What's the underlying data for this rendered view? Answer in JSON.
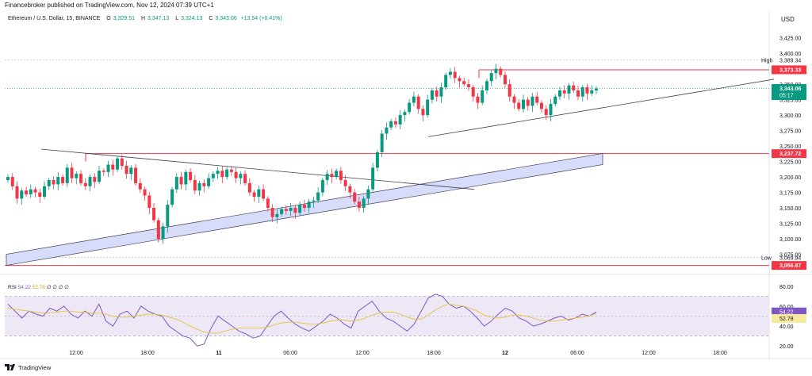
{
  "header": {
    "published": "Financebroker published on TradingView.com, Nov 12, 2024 07:39 UTC+1",
    "symbol": "Ethereum / U.S. Dollar, 15, BINANCE",
    "ohlc": {
      "o_label": "O",
      "o": "3,329.51",
      "h_label": "H",
      "h": "3,347.13",
      "l_label": "L",
      "l": "3,324.13",
      "c_label": "C",
      "c": "3,343.06",
      "change": "+13.54 (+0.41%)"
    },
    "currency": "USD"
  },
  "rsi_legend": {
    "label": "RSI",
    "value1": "54.22",
    "value2": "52.78",
    "extras": "∅ ∅ ∅ ∅"
  },
  "footer": {
    "logo_text": "TradingView"
  },
  "colors": {
    "up": "#089981",
    "down": "#f23645",
    "channel_fill": "#d8dcfb",
    "rsi": "#7e57c2",
    "rsi_ma": "#e5c33b",
    "level_line": "#f23645"
  },
  "chart_data": [
    {
      "type": "candlestick",
      "title": "Ethereum / U.S. Dollar, 15, BINANCE",
      "ylim": [
        3050,
        3440
      ],
      "y_ticks": [
        "3,425.00",
        "3,400.00",
        "3,375.00",
        "3,350.00",
        "3,325.00",
        "3,300.00",
        "3,275.00",
        "3,250.00",
        "3,225.00",
        "3,200.00",
        "3,175.00",
        "3,150.00",
        "3,125.00",
        "3,100.00",
        "3,075.00"
      ],
      "x_ticks": [
        "12:00",
        "18:00",
        "11",
        "06:00",
        "12:00",
        "18:00",
        "12",
        "06:00",
        "12:00",
        "18:00"
      ],
      "price_labels": [
        {
          "text": "3,389.34",
          "value": 3389.34,
          "tag": "High",
          "kind": "plain"
        },
        {
          "text": "3,373.33",
          "value": 3373.33,
          "kind": "red"
        },
        {
          "text": "3,343.06",
          "value": 3343.06,
          "sub": "05:17",
          "kind": "green"
        },
        {
          "text": "3,237.72",
          "value": 3237.72,
          "kind": "red"
        },
        {
          "text": "3,069.94",
          "value": 3069.94,
          "tag": "Low",
          "kind": "plain"
        },
        {
          "text": "3,056.87",
          "value": 3056.87,
          "kind": "red"
        }
      ],
      "horizontal_levels": [
        3373.33,
        3237.72,
        3056.87
      ],
      "closes": [
        3200,
        3185,
        3165,
        3178,
        3172,
        3180,
        3175,
        3168,
        3185,
        3195,
        3188,
        3200,
        3190,
        3215,
        3198,
        3205,
        3190,
        3185,
        3200,
        3192,
        3210,
        3208,
        3220,
        3212,
        3230,
        3218,
        3205,
        3215,
        3190,
        3180,
        3170,
        3150,
        3130,
        3100,
        3120,
        3155,
        3180,
        3200,
        3188,
        3208,
        3195,
        3178,
        3190,
        3185,
        3198,
        3205,
        3210,
        3200,
        3212,
        3208,
        3198,
        3205,
        3190,
        3175,
        3168,
        3180,
        3165,
        3150,
        3135,
        3140,
        3148,
        3145,
        3150,
        3142,
        3155,
        3150,
        3160,
        3162,
        3175,
        3195,
        3205,
        3200,
        3210,
        3195,
        3185,
        3175,
        3160,
        3150,
        3165,
        3180,
        3215,
        3240,
        3270,
        3280,
        3290,
        3285,
        3300,
        3305,
        3320,
        3330,
        3310,
        3300,
        3325,
        3340,
        3330,
        3345,
        3365,
        3370,
        3360,
        3355,
        3350,
        3345,
        3330,
        3320,
        3340,
        3355,
        3368,
        3375,
        3365,
        3350,
        3330,
        3320,
        3310,
        3325,
        3315,
        3330,
        3320,
        3310,
        3300,
        3318,
        3330,
        3340,
        3335,
        3348,
        3340,
        3330,
        3345,
        3335,
        3340,
        3343.06
      ]
    },
    {
      "type": "line",
      "title": "RSI",
      "ylim": [
        17,
        87
      ],
      "y_ticks": [
        "80.00",
        "60.00",
        "40.00",
        "20.00"
      ],
      "band": [
        70,
        30
      ],
      "series": [
        {
          "name": "RSI",
          "values": [
            62,
            55,
            48,
            55,
            52,
            50,
            58,
            55,
            60,
            52,
            48,
            55,
            50,
            62,
            45,
            40,
            52,
            55,
            48,
            60,
            55,
            52,
            50,
            40,
            35,
            30,
            28,
            20,
            22,
            38,
            50,
            45,
            40,
            35,
            32,
            28,
            30,
            40,
            50,
            55,
            48,
            42,
            38,
            35,
            40,
            45,
            52,
            48,
            42,
            38,
            55,
            60,
            65,
            55,
            48,
            45,
            40,
            35,
            42,
            55,
            68,
            72,
            70,
            62,
            58,
            60,
            55,
            48,
            40,
            45,
            52,
            58,
            55,
            48,
            45,
            40,
            42,
            45,
            48,
            50,
            46,
            48,
            52,
            50,
            54.22
          ]
        },
        {
          "name": "RSI MA",
          "values": [
            58,
            57,
            56,
            55,
            54,
            53,
            53,
            54,
            55,
            55,
            54,
            54,
            53,
            53,
            52,
            50,
            49,
            49,
            50,
            51,
            52,
            52,
            51,
            49,
            47,
            44,
            40,
            37,
            34,
            33,
            33,
            35,
            37,
            38,
            38,
            38,
            38,
            39,
            41,
            43,
            44,
            44,
            43,
            42,
            42,
            43,
            45,
            46,
            46,
            45,
            46,
            48,
            51,
            53,
            54,
            54,
            52,
            49,
            47,
            47,
            51,
            56,
            60,
            62,
            61,
            60,
            58,
            55,
            51,
            49,
            48,
            49,
            51,
            51,
            50,
            48,
            46,
            45,
            45,
            46,
            47,
            48,
            49,
            50,
            52.78
          ]
        }
      ]
    }
  ]
}
